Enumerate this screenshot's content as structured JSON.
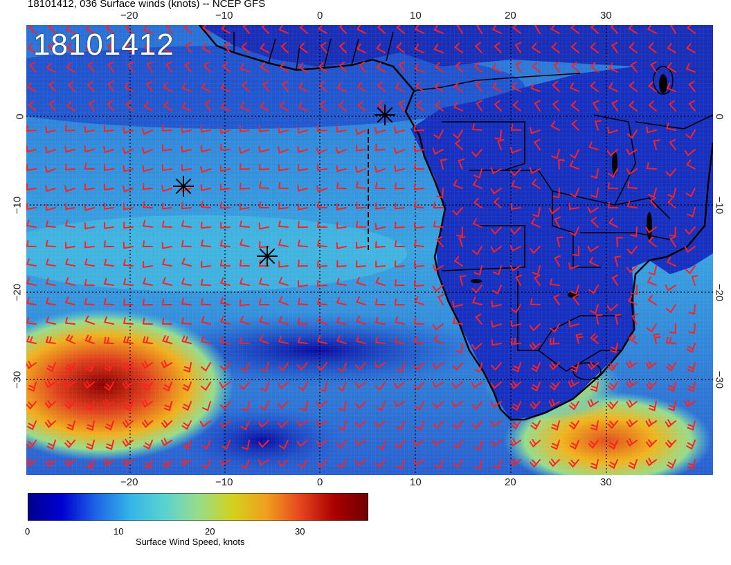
{
  "title": "18101412, 036 Surface winds (knots) -- NCEP GFS",
  "run_label": "18101412",
  "map": {
    "lon_ticks_top": [
      "−20",
      "−10",
      "0",
      "10",
      "20",
      "30"
    ],
    "lon_ticks_bottom": [
      "−20",
      "−10",
      "0",
      "10",
      "20",
      "30"
    ],
    "lat_ticks_left": [
      "0",
      "−10",
      "−20",
      "−30"
    ],
    "lat_ticks_right": [
      "0",
      "−10",
      "−20",
      "−30"
    ],
    "barb_color": "#ff2020",
    "storm_markers": 3
  },
  "colorbar": {
    "ticks": [
      "0",
      "10",
      "20",
      "30"
    ],
    "title": "Surface Wind Speed, knots",
    "colors": [
      "#00008b",
      "#0000d0",
      "#1e64e6",
      "#34b4e6",
      "#5ad2d2",
      "#96dc8c",
      "#d2d21e",
      "#f0a01e",
      "#e6461e",
      "#aa0000",
      "#6e0000"
    ]
  }
}
